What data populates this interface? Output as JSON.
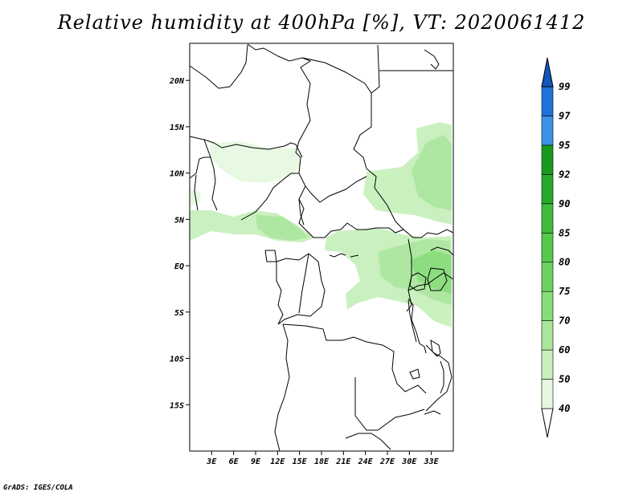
{
  "title": "Relative humidity at 400hPa [%], VT: 2020061412",
  "credit": "GrADS: IGES/COLA",
  "map": {
    "lon_range": [
      0,
      36
    ],
    "lat_range": [
      -20,
      24
    ],
    "lat_labels": [
      "20N",
      "15N",
      "10N",
      "5N",
      "EQ",
      "5S",
      "10S",
      "15S"
    ],
    "lon_labels": [
      "3E",
      "6E",
      "9E",
      "12E",
      "15E",
      "18E",
      "21E",
      "24E",
      "27E",
      "30E",
      "33E"
    ]
  },
  "colorbar": {
    "levels": [
      "40",
      "50",
      "60",
      "70",
      "75",
      "80",
      "85",
      "90",
      "92",
      "95",
      "97",
      "99"
    ],
    "colors": [
      "#e6f9e0",
      "#c8f0bc",
      "#a9e69c",
      "#87dc7a",
      "#6cd25f",
      "#55c94a",
      "#3fbc3a",
      "#28a82b",
      "#189a1f",
      "#3a93e6",
      "#1f72d8",
      "#1456bd"
    ]
  }
}
